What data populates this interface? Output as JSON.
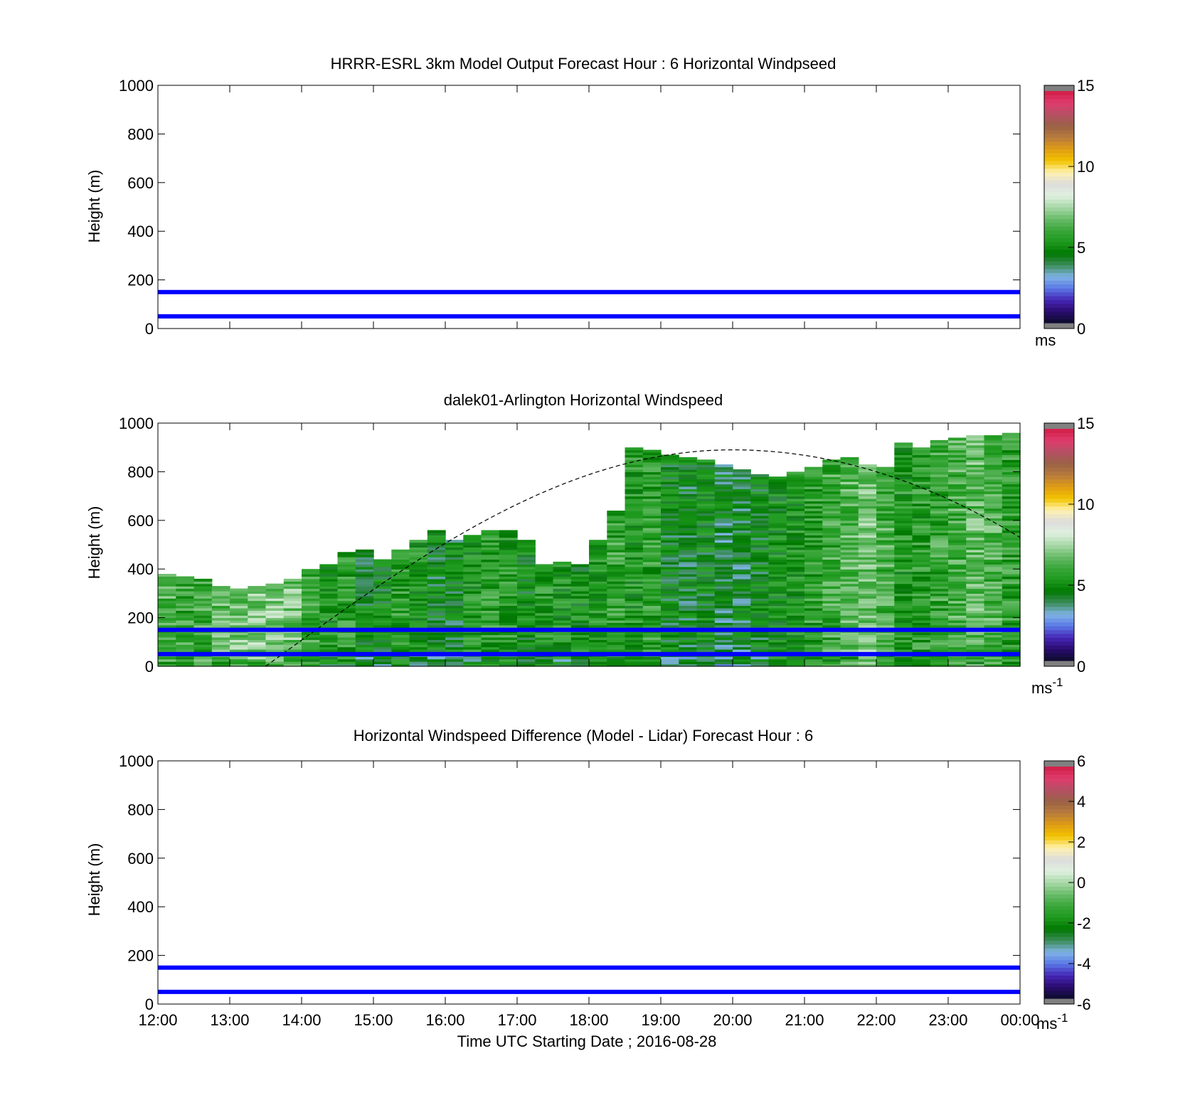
{
  "chart_data": [
    {
      "type": "heatmap",
      "title": "HRRR-ESRL 3km Model Output   Forecast Hour : 6 Horizontal Windpseed",
      "ylabel": "Height (m)",
      "ylim": [
        0,
        1000
      ],
      "yticks": [
        "0",
        "200",
        "400",
        "600",
        "800",
        "1000"
      ],
      "xlim": [
        "12:00",
        "00:00"
      ],
      "reference_lines_m": [
        50,
        150
      ],
      "reference_line_color": "#0000ff",
      "colorbar": {
        "ticks": [
          "0",
          "5",
          "10",
          "15"
        ],
        "unit": "ms",
        "unit_sup": ""
      },
      "cells": []
    },
    {
      "type": "heatmap",
      "title": "dalek01-Arlington  Horizontal Windspeed",
      "ylabel": "Height (m)",
      "ylim": [
        0,
        1000
      ],
      "yticks": [
        "0",
        "200",
        "400",
        "600",
        "800",
        "1000"
      ],
      "xlim": [
        "12:00",
        "00:00"
      ],
      "reference_lines_m": [
        50,
        150
      ],
      "reference_line_color": "#0000ff",
      "colorbar": {
        "ticks": [
          "0",
          "5",
          "10",
          "15"
        ],
        "unit": "ms",
        "unit_sup": "-1"
      },
      "value_range": [
        0,
        15
      ],
      "column_width_hours": 0.25,
      "column_tops_m": [
        380,
        370,
        360,
        330,
        320,
        330,
        340,
        360,
        400,
        420,
        470,
        480,
        440,
        480,
        520,
        560,
        520,
        540,
        560,
        560,
        520,
        420,
        430,
        420,
        520,
        640,
        900,
        890,
        870,
        860,
        850,
        830,
        810,
        790,
        780,
        800,
        820,
        850,
        860,
        830,
        820,
        920,
        900,
        930,
        940,
        950,
        950,
        960
      ],
      "column_mean_speed_ms": [
        6.2,
        5.8,
        6.0,
        6.5,
        6.8,
        7.0,
        7.2,
        6.8,
        6.0,
        5.2,
        5.5,
        4.6,
        4.8,
        5.6,
        5.2,
        4.5,
        4.5,
        5.2,
        5.6,
        5.5,
        4.8,
        5.3,
        5.2,
        5.0,
        5.3,
        5.8,
        5.3,
        5.6,
        4.6,
        4.4,
        4.7,
        4.1,
        4.2,
        4.6,
        5.0,
        5.2,
        5.6,
        6.0,
        6.3,
        6.8,
        6.1,
        5.4,
        5.5,
        5.8,
        6.1,
        6.5,
        6.2,
        5.6
      ],
      "noon_solar_elevation_curve": {
        "start": "13:30",
        "peak_time": "20:00",
        "peak_height_m": 890,
        "end_height_m": 530,
        "style": "dashed",
        "color": "#000000"
      }
    },
    {
      "type": "heatmap",
      "title": "Horizontal Windspeed Difference (Model - Lidar) Forecast Hour : 6",
      "ylabel": "Height (m)",
      "xlabel": "Time UTC  Starting Date ; 2016-08-28",
      "ylim": [
        0,
        1000
      ],
      "yticks": [
        "0",
        "200",
        "400",
        "600",
        "800",
        "1000"
      ],
      "xticks": [
        "12:00",
        "13:00",
        "14:00",
        "15:00",
        "16:00",
        "17:00",
        "18:00",
        "19:00",
        "20:00",
        "21:00",
        "22:00",
        "23:00",
        "00:00"
      ],
      "xlim": [
        "12:00",
        "00:00"
      ],
      "reference_lines_m": [
        50,
        150
      ],
      "reference_line_color": "#0000ff",
      "colorbar": {
        "ticks": [
          "-6",
          "-4",
          "-2",
          "0",
          "2",
          "4",
          "6"
        ],
        "unit": "ms",
        "unit_sup": "-1"
      },
      "cells": []
    }
  ],
  "colormap_stops": [
    "#808080",
    "#0c0c2a",
    "#2a0c6e",
    "#4626b6",
    "#5a78e6",
    "#80b4e6",
    "#3c8c5a",
    "#007800",
    "#1e9a1e",
    "#3aa63a",
    "#6abc6a",
    "#a8d8a8",
    "#e0f0e0",
    "#dcdcdc",
    "#fff2b0",
    "#f2c400",
    "#e09c14",
    "#b87c3c",
    "#9a6246",
    "#b45064",
    "#e03c6e",
    "#d01e46",
    "#808080"
  ]
}
